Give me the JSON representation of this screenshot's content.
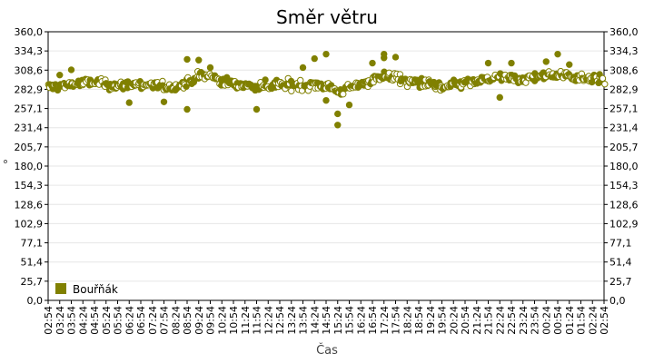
{
  "chart_data": {
    "type": "scatter",
    "title": "Směr větru",
    "xlabel": "Čas",
    "ylabel": "°",
    "ylim": [
      0,
      360
    ],
    "y_ticks": [
      "0,0",
      "25,7",
      "51,4",
      "77,1",
      "102,9",
      "128,6",
      "154,3",
      "180,0",
      "205,7",
      "231,4",
      "257,1",
      "282,9",
      "308,6",
      "334,3",
      "360,0"
    ],
    "x_ticks": [
      "02:54",
      "03:24",
      "03:54",
      "04:24",
      "04:54",
      "05:24",
      "05:54",
      "06:24",
      "06:54",
      "07:24",
      "07:54",
      "08:24",
      "08:54",
      "09:24",
      "09:54",
      "10:24",
      "10:54",
      "11:24",
      "11:54",
      "12:24",
      "12:54",
      "13:24",
      "13:54",
      "14:24",
      "14:54",
      "15:24",
      "15:54",
      "16:24",
      "16:54",
      "17:24",
      "17:54",
      "18:24",
      "18:54",
      "19:24",
      "19:54",
      "20:24",
      "20:54",
      "21:24",
      "21:54",
      "22:24",
      "22:54",
      "23:24",
      "23:54",
      "00:24",
      "00:54",
      "01:24",
      "01:54",
      "02:24",
      "02:54"
    ],
    "grid": true,
    "legend_position": "bottom-left",
    "color": "#808000",
    "series": [
      {
        "name": "Bouřňák",
        "trend": [
          [
            "02:54",
            286
          ],
          [
            "03:24",
            287
          ],
          [
            "03:54",
            290
          ],
          [
            "04:24",
            291
          ],
          [
            "04:54",
            292
          ],
          [
            "05:24",
            290
          ],
          [
            "05:54",
            287
          ],
          [
            "06:24",
            289
          ],
          [
            "06:54",
            290
          ],
          [
            "07:24",
            288
          ],
          [
            "07:54",
            286
          ],
          [
            "08:24",
            286
          ],
          [
            "08:54",
            291
          ],
          [
            "09:24",
            300
          ],
          [
            "09:54",
            301
          ],
          [
            "10:24",
            294
          ],
          [
            "10:54",
            290
          ],
          [
            "11:24",
            288
          ],
          [
            "11:54",
            287
          ],
          [
            "12:24",
            288
          ],
          [
            "12:54",
            289
          ],
          [
            "13:24",
            289
          ],
          [
            "13:54",
            289
          ],
          [
            "14:24",
            289
          ],
          [
            "14:54",
            288
          ],
          [
            "15:24",
            280
          ],
          [
            "15:54",
            283
          ],
          [
            "16:24",
            290
          ],
          [
            "16:54",
            296
          ],
          [
            "17:24",
            301
          ],
          [
            "17:54",
            299
          ],
          [
            "18:24",
            293
          ],
          [
            "18:54",
            292
          ],
          [
            "19:24",
            290
          ],
          [
            "19:54",
            284
          ],
          [
            "20:24",
            289
          ],
          [
            "20:54",
            291
          ],
          [
            "21:24",
            293
          ],
          [
            "21:54",
            296
          ],
          [
            "22:24",
            299
          ],
          [
            "22:54",
            297
          ],
          [
            "23:24",
            296
          ],
          [
            "23:54",
            300
          ],
          [
            "00:24",
            301
          ],
          [
            "00:54",
            303
          ],
          [
            "01:24",
            301
          ],
          [
            "01:54",
            299
          ],
          [
            "02:24",
            298
          ],
          [
            "02:54",
            297
          ]
        ],
        "spread": 10,
        "outliers": [
          [
            "03:24",
            302
          ],
          [
            "03:54",
            309
          ],
          [
            "06:24",
            265
          ],
          [
            "07:54",
            266
          ],
          [
            "08:54",
            323
          ],
          [
            "08:54",
            256
          ],
          [
            "09:24",
            322
          ],
          [
            "09:54",
            312
          ],
          [
            "11:54",
            256
          ],
          [
            "13:54",
            312
          ],
          [
            "14:24",
            324
          ],
          [
            "14:54",
            330
          ],
          [
            "14:54",
            268
          ],
          [
            "15:24",
            250
          ],
          [
            "15:24",
            235
          ],
          [
            "15:54",
            262
          ],
          [
            "16:54",
            318
          ],
          [
            "17:24",
            330
          ],
          [
            "17:24",
            325
          ],
          [
            "17:54",
            326
          ],
          [
            "21:54",
            318
          ],
          [
            "22:24",
            272
          ],
          [
            "22:54",
            318
          ],
          [
            "00:24",
            320
          ],
          [
            "00:54",
            330
          ],
          [
            "01:24",
            316
          ]
        ]
      }
    ]
  }
}
